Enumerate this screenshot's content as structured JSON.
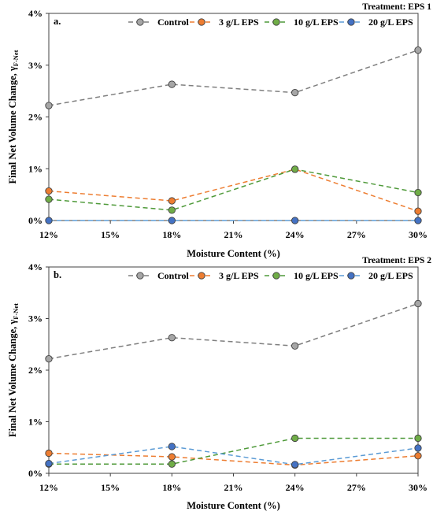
{
  "chart_data": [
    {
      "type": "line",
      "panel_label": "a.",
      "treatment": "Treatment: EPS 1",
      "xlabel": "Moisture Content (%)",
      "ylabel": "Final Net Volume Change, γ",
      "ylabel_sub": "F-Net",
      "x_ticks": [
        "12%",
        "15%",
        "18%",
        "21%",
        "24%",
        "27%",
        "30%"
      ],
      "y_ticks": [
        "0%",
        "1%",
        "2%",
        "3%",
        "4%"
      ],
      "xlim": [
        12,
        30
      ],
      "ylim": [
        0,
        4
      ],
      "legend_position": "top",
      "x": [
        12,
        18,
        24,
        30
      ],
      "series": [
        {
          "name": "Control",
          "color": "#a6a6a6",
          "line_color": "#7f7f7f",
          "values": [
            2.22,
            2.63,
            2.47,
            3.29
          ]
        },
        {
          "name": "3 g/L EPS",
          "color": "#ed7d31",
          "line_color": "#ed7d31",
          "values": [
            0.57,
            0.38,
            0.99,
            0.18
          ]
        },
        {
          "name": "10 g/L EPS",
          "color": "#70ad47",
          "line_color": "#4f9a3a",
          "values": [
            0.41,
            0.2,
            0.99,
            0.54
          ]
        },
        {
          "name": "20 g/L EPS",
          "color": "#4472c4",
          "line_color": "#5b9bd5",
          "values": [
            0.0,
            0.0,
            0.0,
            0.0
          ]
        }
      ]
    },
    {
      "type": "line",
      "panel_label": "b.",
      "treatment": "Treatment: EPS 2",
      "xlabel": "Moisture Content (%)",
      "ylabel": "Final Net Volume Change, γ",
      "ylabel_sub": "F-Net",
      "x_ticks": [
        "12%",
        "15%",
        "18%",
        "21%",
        "24%",
        "27%",
        "30%"
      ],
      "y_ticks": [
        "0%",
        "1%",
        "2%",
        "3%",
        "4%"
      ],
      "xlim": [
        12,
        30
      ],
      "ylim": [
        0,
        4
      ],
      "legend_position": "top",
      "x": [
        12,
        18,
        24,
        30
      ],
      "series": [
        {
          "name": "Control",
          "color": "#a6a6a6",
          "line_color": "#7f7f7f",
          "values": [
            2.22,
            2.63,
            2.47,
            3.29
          ]
        },
        {
          "name": "3 g/L EPS",
          "color": "#ed7d31",
          "line_color": "#ed7d31",
          "values": [
            0.39,
            0.32,
            0.16,
            0.34
          ]
        },
        {
          "name": "10 g/L EPS",
          "color": "#70ad47",
          "line_color": "#4f9a3a",
          "values": [
            0.18,
            0.18,
            0.68,
            0.68
          ]
        },
        {
          "name": "20 g/L EPS",
          "color": "#4472c4",
          "line_color": "#5b9bd5",
          "values": [
            0.19,
            0.52,
            0.17,
            0.49
          ]
        }
      ]
    }
  ]
}
